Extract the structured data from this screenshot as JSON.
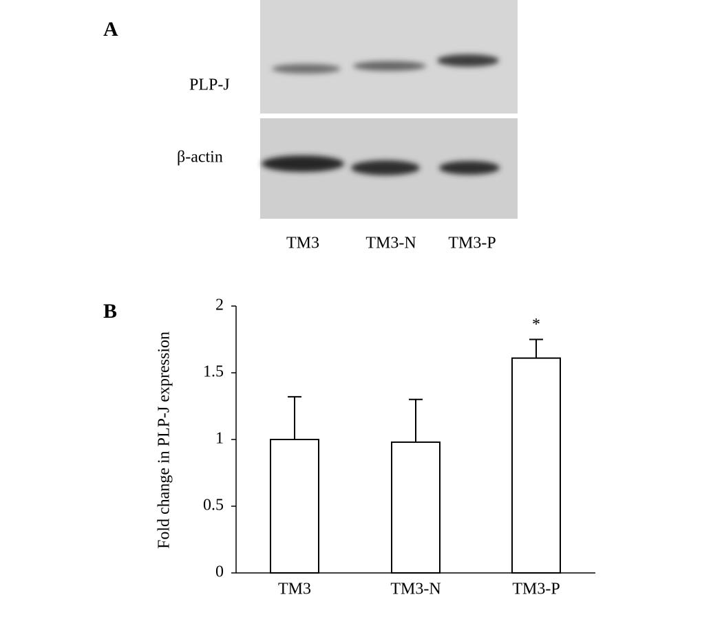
{
  "blot": {
    "label": "A",
    "rows": [
      "PLP-J",
      "β-actin"
    ],
    "lanes": [
      "TM3",
      "TM3-N",
      "TM3-P"
    ]
  },
  "chart_data": {
    "type": "bar",
    "label": "B",
    "y_label": "Fold change in PLP-J expression",
    "categories": [
      "TM3",
      "TM3-N",
      "TM3-P"
    ],
    "values": [
      1.0,
      0.98,
      1.61
    ],
    "errors": [
      0.32,
      0.32,
      0.14
    ],
    "color": "#ffffff",
    "ylim": [
      0,
      2
    ],
    "yticks": [
      0,
      0.5,
      1,
      1.5,
      2
    ],
    "annotations": [
      {
        "text": "*",
        "x": "TM3-P"
      }
    ]
  }
}
